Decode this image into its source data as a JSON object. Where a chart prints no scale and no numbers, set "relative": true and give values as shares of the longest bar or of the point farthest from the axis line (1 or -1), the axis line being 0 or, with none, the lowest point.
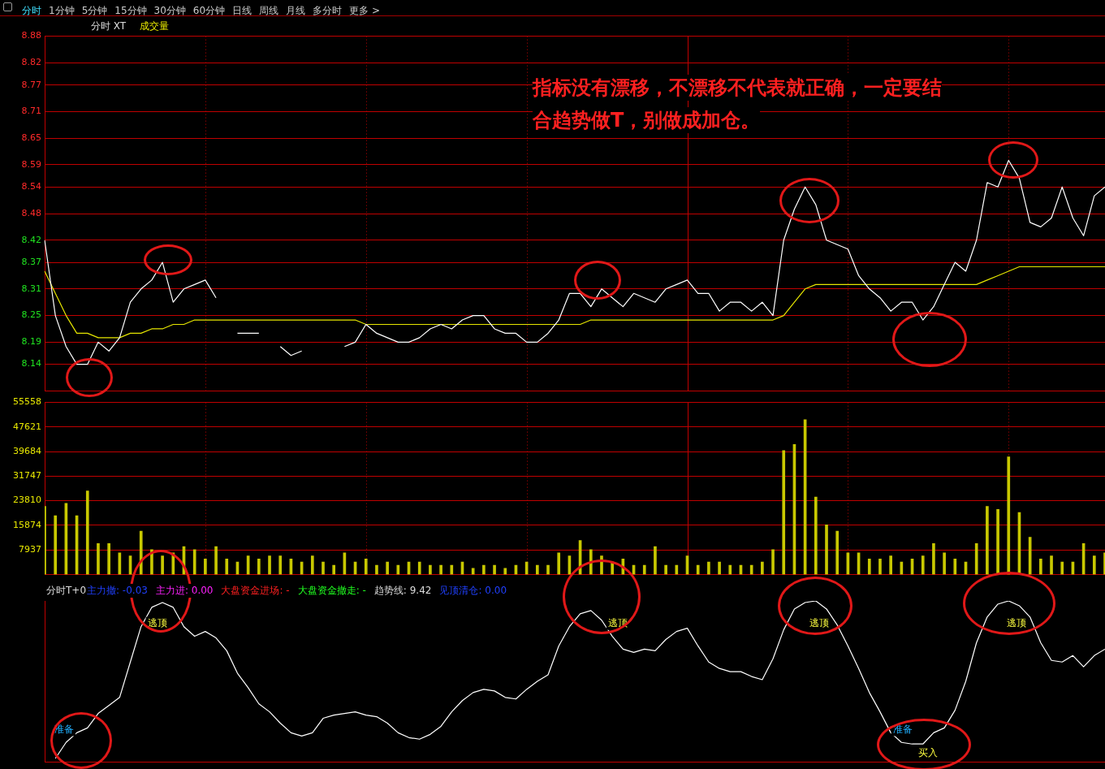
{
  "chart_data": [
    {
      "type": "other",
      "annotations": [
        "分时",
        "1分钟",
        "5分钟",
        "15分钟",
        "30分钟",
        "60分钟",
        "日线",
        "周线",
        "月线",
        "多分时",
        "更多 >"
      ]
    },
    {
      "type": "line",
      "title": "分时 XT",
      "categories": [
        null,
        null,
        null,
        null,
        null,
        null,
        null,
        null,
        null,
        null,
        null,
        null,
        null,
        null,
        null,
        null,
        null,
        null,
        null,
        null,
        null,
        null,
        null,
        null,
        null,
        null,
        null,
        null,
        null,
        null,
        null,
        null,
        null,
        null,
        null,
        null,
        null,
        null,
        null,
        null,
        null,
        null,
        null,
        null,
        null,
        null,
        null,
        null,
        null,
        null,
        null,
        null,
        null,
        null,
        null,
        null,
        null,
        null,
        null,
        null,
        null,
        null,
        null,
        null,
        null,
        null,
        null,
        null,
        null,
        null,
        null,
        null,
        null,
        null,
        null,
        null,
        null,
        null,
        null,
        null,
        null,
        null,
        null,
        null,
        null,
        null,
        null,
        null,
        null,
        null,
        null,
        null,
        null,
        null,
        null,
        null,
        null,
        null,
        null,
        null
      ],
      "series": [
        {
          "color": "#ffffff",
          "values": [
            8.42,
            8.25,
            8.18,
            8.14,
            8.14,
            8.19,
            8.17,
            8.2,
            8.28,
            8.31,
            8.33,
            8.37,
            8.28,
            8.31,
            8.32,
            8.33,
            8.29,
            null,
            8.21,
            8.21,
            8.21,
            null,
            8.18,
            8.16,
            8.17,
            null,
            null,
            null,
            8.18,
            8.19,
            8.23,
            8.21,
            8.2,
            8.19,
            8.19,
            8.2,
            8.22,
            8.23,
            8.22,
            8.24,
            8.25,
            8.25,
            8.22,
            8.21,
            8.21,
            8.19,
            8.19,
            8.21,
            8.24,
            8.3,
            8.3,
            8.27,
            8.31,
            8.29,
            8.27,
            8.3,
            8.29,
            8.28,
            8.31,
            8.32,
            8.33,
            8.3,
            8.3,
            8.26,
            8.28,
            8.28,
            8.26,
            8.28,
            8.25,
            8.42,
            8.49,
            8.54,
            8.5,
            8.42,
            8.41,
            8.4,
            8.34,
            8.31,
            8.29,
            8.26,
            8.28,
            8.28,
            8.24,
            8.27,
            8.32,
            8.37,
            8.35,
            8.42,
            8.55,
            8.54,
            8.6,
            8.56,
            8.46,
            8.45,
            8.47,
            8.54,
            8.47,
            8.43,
            8.52,
            8.54
          ]
        },
        {
          "color": "#e6e600",
          "values": [
            8.35,
            8.3,
            8.25,
            8.21,
            8.21,
            8.2,
            8.2,
            8.2,
            8.21,
            8.21,
            8.22,
            8.22,
            8.23,
            8.23,
            8.24,
            8.24,
            8.24,
            8.24,
            8.24,
            8.24,
            8.24,
            8.24,
            8.24,
            8.24,
            8.24,
            8.24,
            8.24,
            8.24,
            8.24,
            8.24,
            8.23,
            8.23,
            8.23,
            8.23,
            8.23,
            8.23,
            8.23,
            8.23,
            8.23,
            8.23,
            8.23,
            8.23,
            8.23,
            8.23,
            8.23,
            8.23,
            8.23,
            8.23,
            8.23,
            8.23,
            8.23,
            8.24,
            8.24,
            8.24,
            8.24,
            8.24,
            8.24,
            8.24,
            8.24,
            8.24,
            8.24,
            8.24,
            8.24,
            8.24,
            8.24,
            8.24,
            8.24,
            8.24,
            8.24,
            8.25,
            8.28,
            8.31,
            8.32,
            8.32,
            8.32,
            8.32,
            8.32,
            8.32,
            8.32,
            8.32,
            8.32,
            8.32,
            8.32,
            8.32,
            8.32,
            8.32,
            8.32,
            8.32,
            8.33,
            8.34,
            8.35,
            8.36,
            8.36,
            8.36,
            8.36,
            8.36,
            8.36,
            8.36,
            8.36,
            8.36
          ]
        }
      ],
      "ylim": [
        8.08,
        8.88
      ],
      "yticks": [
        8.14,
        8.19,
        8.25,
        8.31,
        8.37,
        8.42,
        8.48,
        8.54,
        8.59,
        8.65,
        8.71,
        8.77,
        8.82,
        8.88
      ],
      "grid": true,
      "tick_labels": "y",
      "annotations": [
        "指标没有漂移，不漂移不代表就正确，一定要结",
        "合趋势做T，别做成加仓。",
        "成交量"
      ]
    },
    {
      "type": "bar",
      "categories": [
        null,
        null,
        null,
        null,
        null,
        null,
        null,
        null,
        null,
        null,
        null,
        null,
        null,
        null,
        null,
        null,
        null,
        null,
        null,
        null,
        null,
        null,
        null,
        null,
        null,
        null,
        null,
        null,
        null,
        null,
        null,
        null,
        null,
        null,
        null,
        null,
        null,
        null,
        null,
        null,
        null,
        null,
        null,
        null,
        null,
        null,
        null,
        null,
        null,
        null,
        null,
        null,
        null,
        null,
        null,
        null,
        null,
        null,
        null,
        null,
        null,
        null,
        null,
        null,
        null,
        null,
        null,
        null,
        null,
        null,
        null,
        null,
        null,
        null,
        null,
        null,
        null,
        null,
        null,
        null,
        null,
        null,
        null,
        null,
        null,
        null,
        null,
        null,
        null,
        null,
        null,
        null,
        null,
        null,
        null,
        null,
        null,
        null,
        null,
        null
      ],
      "series": [
        {
          "color": "#c8c800",
          "values": [
            22000,
            19000,
            23000,
            19000,
            27000,
            10000,
            10000,
            7000,
            6000,
            14000,
            8000,
            6000,
            7000,
            9000,
            8000,
            5000,
            9000,
            5000,
            4000,
            6000,
            5000,
            6000,
            6000,
            5000,
            4000,
            6000,
            4000,
            3000,
            7000,
            4000,
            5000,
            3000,
            4000,
            3000,
            4000,
            4000,
            3000,
            3000,
            3000,
            4000,
            2000,
            3000,
            3000,
            2000,
            3000,
            4000,
            3000,
            3000,
            7000,
            6000,
            11000,
            8000,
            6000,
            4000,
            5000,
            3000,
            3000,
            9000,
            3000,
            3000,
            6000,
            3000,
            4000,
            4000,
            3000,
            3000,
            3000,
            4000,
            8000,
            40000,
            42000,
            50000,
            25000,
            16000,
            14000,
            7000,
            7000,
            5000,
            5000,
            6000,
            4000,
            5000,
            6000,
            10000,
            7000,
            5000,
            4000,
            10000,
            22000,
            21000,
            38000,
            20000,
            12000,
            5000,
            6000,
            4000,
            4000,
            10000,
            6000,
            7000
          ]
        }
      ],
      "ylim": [
        0,
        55558
      ],
      "yticks": [
        7937,
        15874,
        23810,
        31747,
        39684,
        47621,
        55558
      ],
      "grid": true,
      "tick_labels": "y"
    },
    {
      "type": "line",
      "title": "分时T+0",
      "relative": true,
      "tick_labels": false,
      "categories": [
        null,
        null,
        null,
        null,
        null,
        null,
        null,
        null,
        null,
        null,
        null,
        null,
        null,
        null,
        null,
        null,
        null,
        null,
        null,
        null,
        null,
        null,
        null,
        null,
        null,
        null,
        null,
        null,
        null,
        null,
        null,
        null,
        null,
        null,
        null,
        null,
        null,
        null,
        null,
        null,
        null,
        null,
        null,
        null,
        null,
        null,
        null,
        null,
        null,
        null,
        null,
        null,
        null,
        null,
        null,
        null,
        null,
        null,
        null,
        null,
        null,
        null,
        null,
        null,
        null,
        null,
        null,
        null,
        null,
        null,
        null,
        null,
        null,
        null,
        null,
        null,
        null,
        null,
        null,
        null,
        null,
        null,
        null,
        null,
        null,
        null,
        null,
        null,
        null,
        null,
        null,
        null,
        null,
        null,
        null,
        null,
        null,
        null,
        null,
        null
      ],
      "series": [
        {
          "color": "#ffffff",
          "values": [
            null,
            0.02,
            0.12,
            0.18,
            0.21,
            0.3,
            0.35,
            0.4,
            0.62,
            0.84,
            0.96,
            0.99,
            0.96,
            0.84,
            0.78,
            0.81,
            0.77,
            0.69,
            0.55,
            0.46,
            0.36,
            0.31,
            0.24,
            0.18,
            0.16,
            0.18,
            0.27,
            0.29,
            0.3,
            0.31,
            0.29,
            0.28,
            0.24,
            0.18,
            0.15,
            0.14,
            0.17,
            0.22,
            0.31,
            0.38,
            0.43,
            0.45,
            0.44,
            0.4,
            0.39,
            0.45,
            0.5,
            0.54,
            0.72,
            0.84,
            0.92,
            0.94,
            0.88,
            0.78,
            0.7,
            0.68,
            0.7,
            0.69,
            0.76,
            0.81,
            0.83,
            0.72,
            0.62,
            0.58,
            0.56,
            0.56,
            0.53,
            0.51,
            0.64,
            0.82,
            0.95,
            0.99,
            1,
            0.95,
            0.85,
            0.72,
            0.58,
            0.43,
            0.31,
            0.18,
            0.12,
            0.11,
            0.11,
            0.18,
            0.21,
            0.32,
            0.5,
            0.74,
            0.9,
            0.98,
            1,
            0.97,
            0.9,
            0.74,
            0.63,
            0.62,
            0.66,
            0.59,
            0.66,
            0.7
          ]
        }
      ],
      "annotations": [
        "主力撤: -0.03",
        "主力进: 0.00",
        "大盘资金进场: -",
        "大盘资金撤走: -",
        "趋势线: 9.42",
        "见顶清仓: 0.00",
        "逃顶",
        "逃顶",
        "逃顶",
        "逃顶",
        "准备",
        "准备",
        "买入"
      ]
    }
  ]
}
